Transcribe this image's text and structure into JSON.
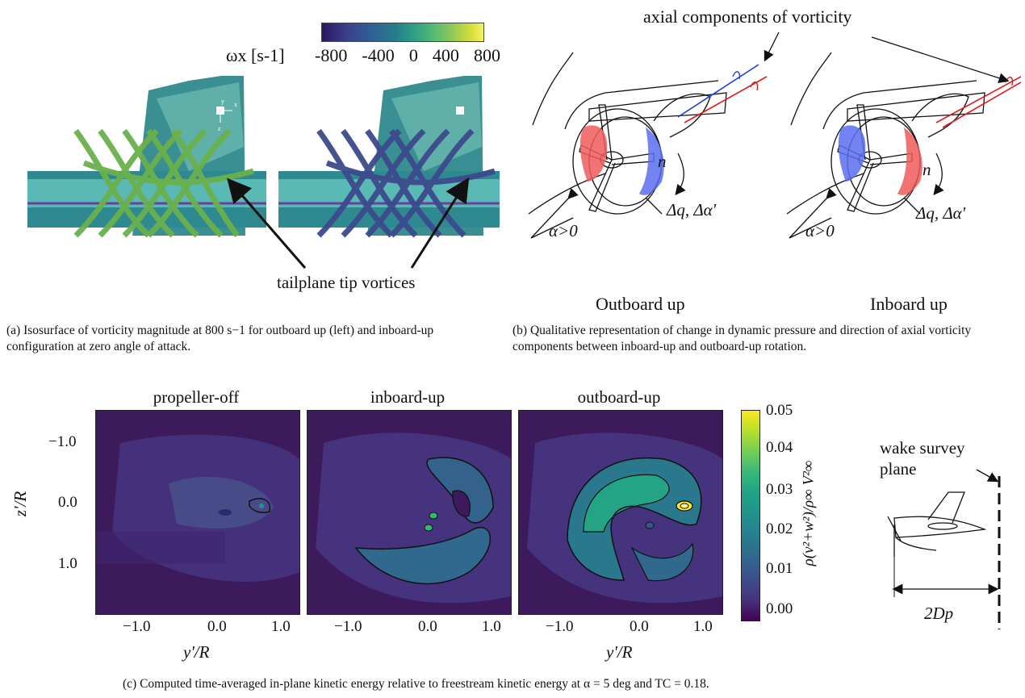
{
  "panel_a": {
    "colorbar_label": "ωx [s-1]",
    "colorbar_ticks": [
      "-800",
      "-400",
      "0",
      "400",
      "800"
    ],
    "axis_glyphs": [
      "y",
      "x",
      "z"
    ],
    "annotation": "tailplane tip vortices",
    "caption": "(a) Isosurface of vorticity magnitude at 800 s−1 for outboard up (left) and inboard-up configuration at zero angle of attack."
  },
  "panel_b": {
    "title": "axial components of vorticity",
    "delta_label": "Δq, Δα'",
    "n_label": "n",
    "alpha_label": "α>0",
    "left_label": "Outboard up",
    "right_label": "Inboard up",
    "caption": "(b) Qualitative representation of change in dynamic pressure and direction of axial vorticity components between inboard-up and outboard-up rotation."
  },
  "panel_c": {
    "titles": [
      "propeller-off",
      "inboard-up",
      "outboard-up"
    ],
    "y_ticks": [
      "−1.0",
      "0.0",
      "1.0"
    ],
    "x_ticks": [
      "−1.0",
      "0.0",
      "1.0"
    ],
    "ylabel": "z'/R",
    "xlabel": "y'/R",
    "colorbar_ticks": [
      "0.05",
      "0.04",
      "0.03",
      "0.02",
      "0.01",
      "0.00"
    ],
    "colorbar_label": "ρ(v²+w²)/ρ∞ V²∞",
    "wake_label_line1": "wake survey",
    "wake_label_line2": "plane",
    "distance_label": "2Dp",
    "caption": "(c) Computed time-averaged in-plane kinetic energy relative to freestream kinetic energy at α = 5 deg and TC = 0.18."
  },
  "colors": {
    "viridis_dark": "#440154",
    "viridis_mid": "#21918c",
    "viridis_light": "#fde725",
    "rot_red": "#ef5a5a",
    "rot_blue": "#5a6ff0",
    "vortex_green": "#6ab04c",
    "vortex_blue": "#3c4a8c"
  }
}
